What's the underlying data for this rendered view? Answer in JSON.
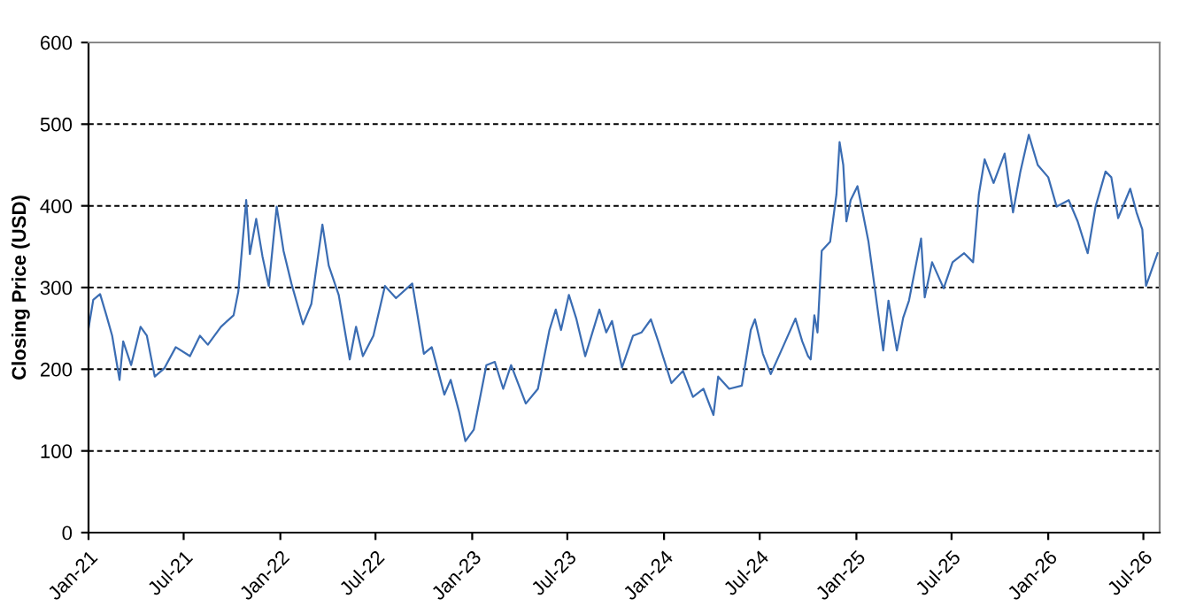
{
  "chart_data": {
    "type": "line",
    "ylabel": "Closing Price (USD)",
    "xlim": [
      "2021-01-01",
      "2026-08-01"
    ],
    "ylim": [
      0,
      600
    ],
    "yticks": [
      0,
      100,
      200,
      300,
      400,
      500,
      600
    ],
    "xticks": [
      {
        "value": "2021-01-01",
        "label": "Jan-21"
      },
      {
        "value": "2021-07-01",
        "label": "Jul-21"
      },
      {
        "value": "2022-01-01",
        "label": "Jan-22"
      },
      {
        "value": "2022-07-01",
        "label": "Jul-22"
      },
      {
        "value": "2023-01-01",
        "label": "Jan-23"
      },
      {
        "value": "2023-07-01",
        "label": "Jul-23"
      },
      {
        "value": "2024-01-01",
        "label": "Jan-24"
      },
      {
        "value": "2024-07-01",
        "label": "Jul-24"
      },
      {
        "value": "2025-01-01",
        "label": "Jan-25"
      },
      {
        "value": "2025-07-01",
        "label": "Jul-25"
      },
      {
        "value": "2026-01-01",
        "label": "Jan-26"
      },
      {
        "value": "2026-07-01",
        "label": "Jul-26"
      }
    ],
    "grid": "y",
    "line_style": "solid",
    "marker": "none",
    "series": [
      {
        "color": "#3b6db3",
        "x": [
          "2021-01-01",
          "2021-01-10",
          "2021-01-23",
          "2021-02-04",
          "2021-02-15",
          "2021-03-01",
          "2021-03-08",
          "2021-03-23",
          "2021-04-10",
          "2021-04-22",
          "2021-05-07",
          "2021-05-25",
          "2021-06-16",
          "2021-07-13",
          "2021-08-01",
          "2021-08-16",
          "2021-09-10",
          "2021-10-04",
          "2021-10-13",
          "2021-10-28",
          "2021-11-04",
          "2021-11-16",
          "2021-11-28",
          "2021-12-10",
          "2021-12-25",
          "2022-01-07",
          "2022-01-22",
          "2022-02-13",
          "2022-03-01",
          "2022-03-22",
          "2022-04-03",
          "2022-04-22",
          "2022-05-13",
          "2022-05-25",
          "2022-06-07",
          "2022-06-27",
          "2022-07-19",
          "2022-08-09",
          "2022-09-09",
          "2022-10-01",
          "2022-10-16",
          "2022-11-09",
          "2022-11-21",
          "2022-12-07",
          "2022-12-19",
          "2023-01-04",
          "2023-01-28",
          "2023-02-13",
          "2023-03-01",
          "2023-03-16",
          "2023-04-13",
          "2023-05-06",
          "2023-05-28",
          "2023-06-09",
          "2023-06-19",
          "2023-07-04",
          "2023-07-18",
          "2023-08-04",
          "2023-08-31",
          "2023-09-13",
          "2023-09-24",
          "2023-10-13",
          "2023-11-03",
          "2023-11-19",
          "2023-12-07",
          "2023-12-21",
          "2024-01-15",
          "2024-02-06",
          "2024-02-25",
          "2024-03-16",
          "2024-04-04",
          "2024-04-13",
          "2024-05-04",
          "2024-05-28",
          "2024-06-14",
          "2024-06-22",
          "2024-07-07",
          "2024-07-22",
          "2024-08-14",
          "2024-09-07",
          "2024-09-20",
          "2024-10-01",
          "2024-10-06",
          "2024-10-13",
          "2024-10-19",
          "2024-10-27",
          "2024-11-12",
          "2024-11-24",
          "2024-11-30",
          "2024-12-07",
          "2024-12-13",
          "2024-12-21",
          "2025-01-03",
          "2025-01-13",
          "2025-01-24",
          "2025-02-05",
          "2025-02-21",
          "2025-03-03",
          "2025-03-19",
          "2025-03-31",
          "2025-04-11",
          "2025-05-04",
          "2025-05-11",
          "2025-05-25",
          "2025-06-16",
          "2025-07-03",
          "2025-07-25",
          "2025-08-11",
          "2025-08-22",
          "2025-09-02",
          "2025-09-19",
          "2025-10-10",
          "2025-10-26",
          "2025-11-09",
          "2025-11-25",
          "2025-12-12",
          "2026-01-01",
          "2026-01-17",
          "2026-02-09",
          "2026-02-26",
          "2026-03-17",
          "2026-04-01",
          "2026-04-20",
          "2026-05-01",
          "2026-05-14",
          "2026-06-06",
          "2026-06-18",
          "2026-06-29",
          "2026-07-06",
          "2026-07-28"
        ],
        "values": [
          250,
          285,
          292,
          266,
          241,
          187,
          234,
          205,
          252,
          241,
          191,
          201,
          227,
          216,
          241,
          230,
          252,
          266,
          295,
          407,
          341,
          384,
          338,
          302,
          399,
          345,
          305,
          255,
          280,
          377,
          327,
          291,
          212,
          252,
          216,
          241,
          302,
          287,
          305,
          219,
          227,
          169,
          187,
          148,
          112,
          126,
          205,
          209,
          176,
          205,
          158,
          176,
          248,
          273,
          248,
          291,
          262,
          216,
          273,
          245,
          259,
          202,
          241,
          245,
          261,
          234,
          183,
          198,
          166,
          176,
          144,
          191,
          176,
          180,
          248,
          261,
          219,
          194,
          227,
          262,
          234,
          216,
          212,
          266,
          245,
          345,
          356,
          414,
          478,
          450,
          381,
          407,
          424,
          392,
          356,
          299,
          223,
          284,
          223,
          263,
          284,
          360,
          288,
          331,
          299,
          331,
          342,
          331,
          414,
          457,
          428,
          464,
          392,
          442,
          487,
          450,
          435,
          399,
          407,
          381,
          342,
          399,
          442,
          435,
          385,
          421,
          392,
          371,
          302,
          342
        ]
      }
    ]
  }
}
